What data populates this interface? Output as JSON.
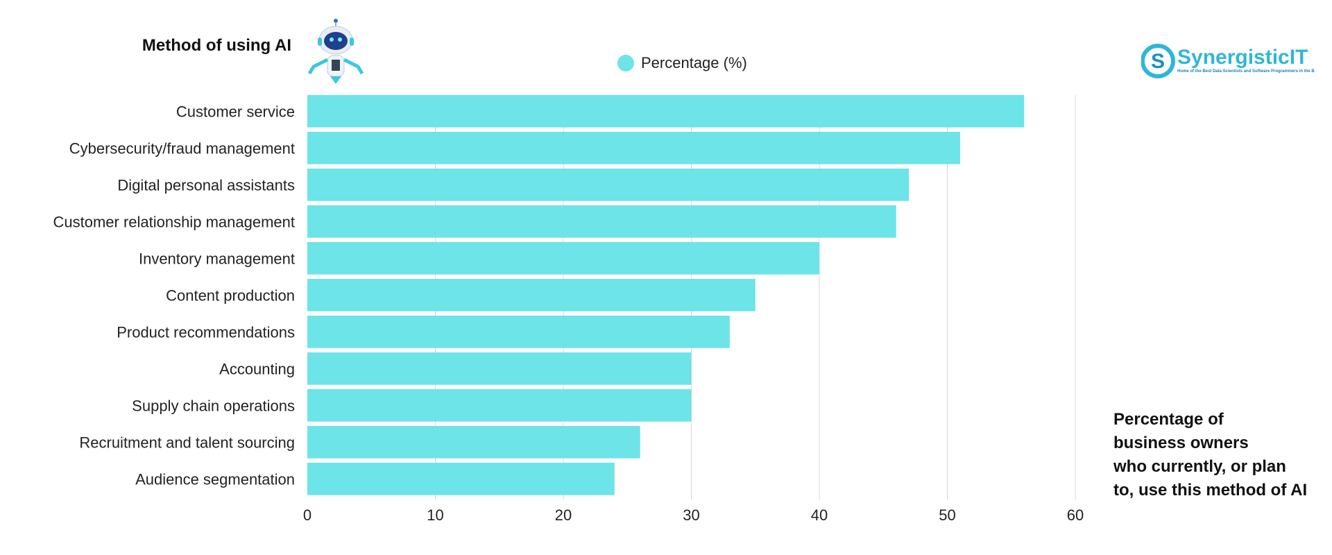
{
  "chart_data": {
    "type": "bar",
    "orientation": "horizontal",
    "title": "Method of using AI",
    "categories": [
      "Customer service",
      "Cybersecurity/fraud management",
      "Digital personal assistants",
      "Customer relationship management",
      "Inventory management",
      "Content production",
      "Product recommendations",
      "Accounting",
      "Supply chain operations",
      "Recruitment and talent sourcing",
      "Audience segmentation"
    ],
    "series": [
      {
        "name": "Percentage (%)",
        "values": [
          56,
          51,
          47,
          46,
          40,
          35,
          33,
          30,
          30,
          26,
          24
        ]
      }
    ],
    "xlim": [
      0,
      60
    ],
    "xticks": [
      "0",
      "10",
      "20",
      "30",
      "40",
      "50",
      "60"
    ],
    "grid": "vertical",
    "legend": "top",
    "bar_color": "#6ce4e8",
    "annotation": "Percentage of business owners who currently, or plan to, use this method of AI"
  },
  "note_lines": [
    "Percentage of",
    "business owners",
    "who currently, or plan",
    "to, use this method of AI"
  ],
  "logo": {
    "name": "SynergisticIT",
    "tagline": "Home of the Best Data Scientists and Software Programmers in the Bay Area",
    "color": "#2fb6d9"
  }
}
